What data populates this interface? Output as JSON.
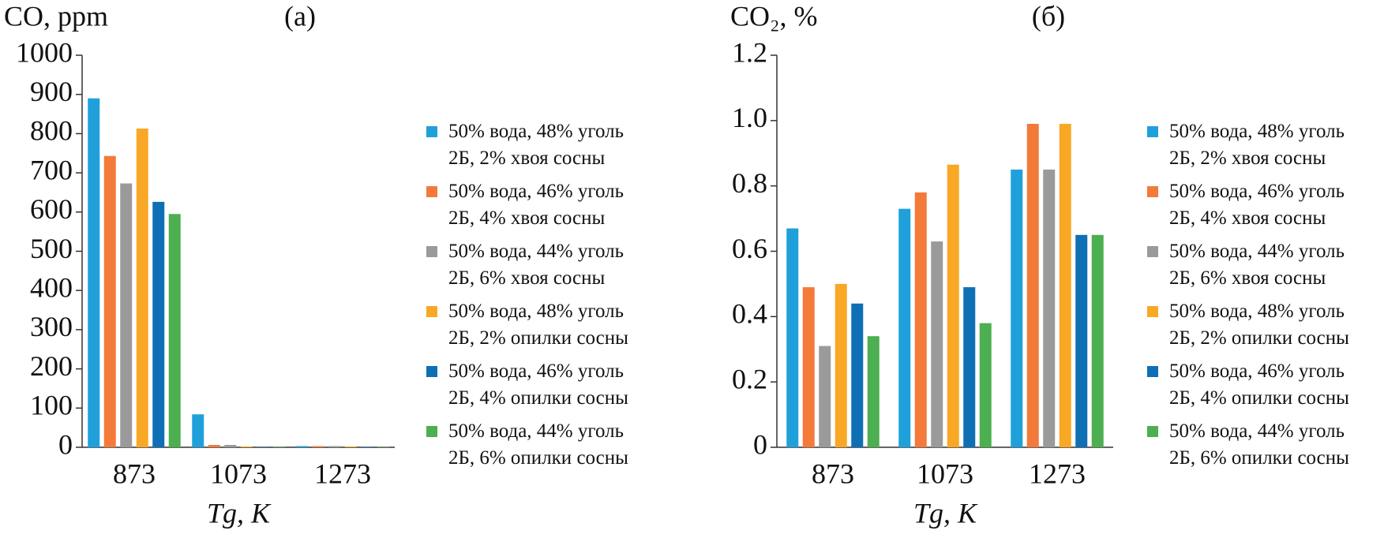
{
  "chart_data": [
    {
      "type": "bar",
      "title": "(a)",
      "y_label": "CO, ppm",
      "x_label": "Tg, K",
      "categories": [
        "873",
        "1073",
        "1273"
      ],
      "ylim": [
        0,
        1000
      ],
      "yticks": [
        0,
        100,
        200,
        300,
        400,
        500,
        600,
        700,
        800,
        900,
        1000
      ],
      "series": [
        {
          "name": "50% вода, 48% уголь\n2Б, 2% хвоя сосны",
          "color": "#1fa0db",
          "values": [
            890,
            84,
            3
          ]
        },
        {
          "name": "50% вода, 46% уголь\n2Б, 4% хвоя сосны",
          "color": "#f47a3a",
          "values": [
            743,
            6,
            3
          ]
        },
        {
          "name": "50% вода, 44% уголь\n2Б, 6% хвоя сосны",
          "color": "#9a9a9a",
          "values": [
            673,
            6,
            3
          ]
        },
        {
          "name": "50% вода, 48% уголь\n2Б, 2% опилки сосны",
          "color": "#f9a825",
          "values": [
            813,
            2,
            2
          ]
        },
        {
          "name": "50% вода, 46% уголь\n2Б, 4% опилки сосны",
          "color": "#0e6fb5",
          "values": [
            626,
            1,
            1
          ]
        },
        {
          "name": "50% вода, 44% уголь\n2Б, 6% опилки сосны",
          "color": "#4caf50",
          "values": [
            595,
            1,
            1
          ]
        }
      ]
    },
    {
      "type": "bar",
      "title": "(б)",
      "y_label": "CO₂, %",
      "x_label": "Tg, K",
      "categories": [
        "873",
        "1073",
        "1273"
      ],
      "ylim": [
        0,
        1.2
      ],
      "yticks": [
        0,
        0.2,
        0.4,
        0.6,
        0.8,
        {
          "value": 1,
          "label": "1.0"
        },
        1.2
      ],
      "series": [
        {
          "name": "50% вода, 48% уголь\n2Б, 2% хвоя сосны",
          "color": "#1fa0db",
          "values": [
            0.67,
            0.73,
            0.85
          ]
        },
        {
          "name": "50% вода, 46% уголь\n2Б, 4% хвоя сосны",
          "color": "#f47a3a",
          "values": [
            0.49,
            0.78,
            0.99
          ]
        },
        {
          "name": "50% вода, 44% уголь\n2Б, 6% хвоя сосны",
          "color": "#9a9a9a",
          "values": [
            0.31,
            0.63,
            0.85
          ]
        },
        {
          "name": "50% вода, 48% уголь\n2Б, 2% опилки сосны",
          "color": "#f9a825",
          "values": [
            0.5,
            0.865,
            0.99
          ]
        },
        {
          "name": "50% вода, 46% уголь\n2Б, 4% опилки сосны",
          "color": "#0e6fb5",
          "values": [
            0.44,
            0.49,
            0.65
          ]
        },
        {
          "name": "50% вода, 44% уголь\n2Б, 6% опилки сосны",
          "color": "#4caf50",
          "values": [
            0.34,
            0.38,
            0.65
          ]
        }
      ]
    }
  ]
}
